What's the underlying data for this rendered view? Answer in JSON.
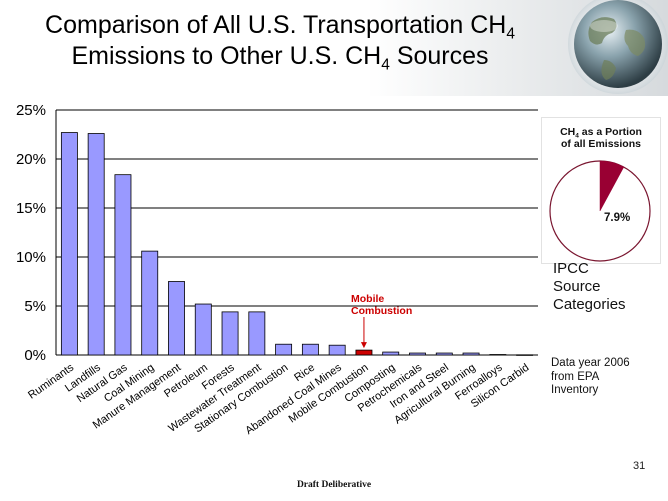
{
  "title": {
    "line1_text": "Comparison of All U.S. Transportation CH",
    "line1_sub": "4",
    "line2_text": "Emissions to Other U.S. CH",
    "line2_sub": "4",
    "line2_end": " Sources"
  },
  "chart_data": {
    "type": "bar",
    "categories": [
      "Ruminants",
      "Landfills",
      "Natural Gas",
      "Coal Mining",
      "Manure Management",
      "Petroleum",
      "Forests",
      "Wastewater Treatment",
      "Stationary Combustion",
      "Rice",
      "Abandoned Coal Mines",
      "Mobile Combustion",
      "Composting",
      "Petrochemicals",
      "Iron and Steel",
      "Agricultural Burning",
      "Ferroalloys",
      "Silicon Carbid"
    ],
    "values": [
      22.7,
      22.6,
      18.4,
      10.6,
      7.5,
      5.2,
      4.4,
      4.4,
      1.1,
      1.1,
      1.0,
      0.5,
      0.3,
      0.2,
      0.2,
      0.2,
      0.05,
      0.02
    ],
    "highlight_index": 11,
    "y_ticks": [
      "0%",
      "5%",
      "10%",
      "15%",
      "20%",
      "25%"
    ],
    "ylim": [
      0,
      25
    ],
    "grid": true,
    "bar_color": "#9999ff",
    "highlight_color": "#cc0000",
    "annotation": {
      "line1": "Mobile",
      "line2": "Combustion",
      "color": "#cc0000"
    }
  },
  "inset": {
    "title_pre": "CH",
    "title_sub": "4",
    "title_post": " as a Portion",
    "title_line2": "of all Emissions",
    "share": 7.9,
    "label": "7.9%",
    "color": "#990033"
  },
  "legend_note": [
    "IPCC",
    "Source",
    "Categories"
  ],
  "source_note": [
    "Data year 2006",
    "from EPA",
    "Inventory"
  ],
  "page_number": "31",
  "footer": "Draft Deliberative"
}
